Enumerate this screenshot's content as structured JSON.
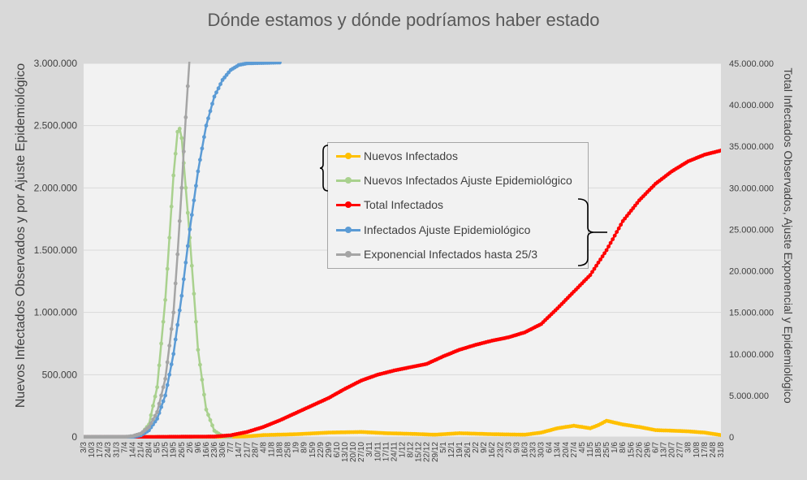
{
  "title": "Dónde estamos y dónde podríamos haber estado",
  "y_left_label": "Nuevos Infectados Observados y por Ajuste Epidemiológico",
  "y_right_label": "Total Infectados Observados, Ajuste Exponencial y Epidemiológico",
  "legend": [
    {
      "label": "Nuevos Infectados",
      "color": "#ffc000"
    },
    {
      "label": "Nuevos Infectados Ajuste Epidemiológico",
      "color": "#a9d18e"
    },
    {
      "label": "Total Infectados",
      "color": "#ff0000"
    },
    {
      "label": "Infectados Ajuste Epidemiológico",
      "color": "#5b9bd5"
    },
    {
      "label": "Exponencial Infectados hasta 25/3",
      "color": "#a5a5a5"
    }
  ],
  "chart_data": {
    "type": "line",
    "title": "Dónde estamos y dónde podríamos haber estado",
    "x_ticks": [
      "3/3",
      "10/3",
      "17/3",
      "24/3",
      "31/3",
      "7/4",
      "14/4",
      "21/4",
      "28/4",
      "5/5",
      "12/5",
      "19/5",
      "26/5",
      "2/6",
      "9/6",
      "16/6",
      "23/6",
      "30/6",
      "7/7",
      "14/7",
      "21/7",
      "28/7",
      "4/8",
      "11/8",
      "18/8",
      "25/8",
      "1/9",
      "8/9",
      "15/9",
      "22/9",
      "29/9",
      "6/10",
      "13/10",
      "20/10",
      "27/10",
      "3/11",
      "10/11",
      "17/11",
      "24/11",
      "1/12",
      "8/12",
      "15/12",
      "22/12",
      "29/12",
      "5/1",
      "12/1",
      "19/1",
      "26/1",
      "2/2",
      "9/2",
      "16/2",
      "23/2",
      "2/3",
      "9/3",
      "16/3",
      "23/3",
      "30/3",
      "6/4",
      "13/4",
      "20/4",
      "27/4",
      "4/5",
      "11/5",
      "18/5",
      "25/5",
      "1/6",
      "8/6",
      "15/6",
      "22/6",
      "29/6",
      "6/7",
      "13/7",
      "20/7",
      "27/7",
      "3/8",
      "10/8",
      "17/8",
      "24/8",
      "31/8"
    ],
    "y_left": {
      "label": "Nuevos Infectados Observados y por Ajuste Epidemiológico",
      "min": 0,
      "max": 3000000,
      "ticks": [
        "0",
        "500.000",
        "1.000.000",
        "1.500.000",
        "2.000.000",
        "2.500.000",
        "3.000.000"
      ]
    },
    "y_right": {
      "label": "Total Infectados Observados, Ajuste Exponencial y Epidemiológico",
      "min": 0,
      "max": 45000000,
      "ticks": [
        "0",
        "5.000.000",
        "10.000.000",
        "15.000.000",
        "20.000.000",
        "25.000.000",
        "30.000.000",
        "35.000.000",
        "40.000.000",
        "45.000.000"
      ]
    },
    "grid": true,
    "series": [
      {
        "name": "Nuevos Infectados",
        "axis": "left",
        "color": "#ffc000",
        "points": [
          [
            0,
            0
          ],
          [
            10,
            0
          ],
          [
            17,
            0
          ],
          [
            20,
            5000
          ],
          [
            22,
            15000
          ],
          [
            26,
            22000
          ],
          [
            30,
            35000
          ],
          [
            34,
            40000
          ],
          [
            37,
            30000
          ],
          [
            40,
            25000
          ],
          [
            43,
            18000
          ],
          [
            46,
            30000
          ],
          [
            50,
            22000
          ],
          [
            54,
            18000
          ],
          [
            56,
            35000
          ],
          [
            58,
            70000
          ],
          [
            60,
            90000
          ],
          [
            62,
            70000
          ],
          [
            63,
            95000
          ],
          [
            64,
            130000
          ],
          [
            66,
            100000
          ],
          [
            68,
            80000
          ],
          [
            70,
            55000
          ],
          [
            72,
            50000
          ],
          [
            74,
            45000
          ],
          [
            76,
            35000
          ],
          [
            78,
            15000
          ]
        ]
      },
      {
        "name": "Nuevos Infectados Ajuste Epidemiológico",
        "axis": "left",
        "color": "#a9d18e",
        "points": [
          [
            0,
            0
          ],
          [
            6,
            0
          ],
          [
            7,
            20000
          ],
          [
            8,
            100000
          ],
          [
            9,
            400000
          ],
          [
            10,
            1100000
          ],
          [
            11,
            2100000
          ],
          [
            11.6,
            2520000
          ],
          [
            12,
            2400000
          ],
          [
            13,
            1600000
          ],
          [
            14,
            700000
          ],
          [
            15,
            220000
          ],
          [
            16,
            50000
          ],
          [
            17,
            5000
          ],
          [
            18,
            0
          ]
        ]
      },
      {
        "name": "Total Infectados",
        "axis": "right",
        "color": "#ff0000",
        "points": [
          [
            0,
            0
          ],
          [
            8,
            0
          ],
          [
            16,
            50000
          ],
          [
            18,
            200000
          ],
          [
            20,
            600000
          ],
          [
            22,
            1200000
          ],
          [
            24,
            2000000
          ],
          [
            26,
            2900000
          ],
          [
            28,
            3800000
          ],
          [
            30,
            4700000
          ],
          [
            32,
            5800000
          ],
          [
            34,
            6800000
          ],
          [
            36,
            7500000
          ],
          [
            38,
            8000000
          ],
          [
            40,
            8400000
          ],
          [
            42,
            8800000
          ],
          [
            44,
            9700000
          ],
          [
            46,
            10500000
          ],
          [
            48,
            11100000
          ],
          [
            50,
            11600000
          ],
          [
            52,
            12000000
          ],
          [
            54,
            12600000
          ],
          [
            56,
            13600000
          ],
          [
            58,
            15500000
          ],
          [
            60,
            17500000
          ],
          [
            62,
            19500000
          ],
          [
            64,
            22500000
          ],
          [
            66,
            26000000
          ],
          [
            68,
            28500000
          ],
          [
            70,
            30500000
          ],
          [
            72,
            32000000
          ],
          [
            74,
            33200000
          ],
          [
            76,
            34000000
          ],
          [
            78,
            34500000
          ]
        ]
      },
      {
        "name": "Infectados Ajuste Epidemiológico",
        "axis": "right",
        "color": "#5b9bd5",
        "points": [
          [
            0,
            0
          ],
          [
            6,
            0
          ],
          [
            7,
            200000
          ],
          [
            8,
            800000
          ],
          [
            9,
            2200000
          ],
          [
            10,
            5000000
          ],
          [
            11,
            10000000
          ],
          [
            12,
            17000000
          ],
          [
            13,
            25000000
          ],
          [
            14,
            32000000
          ],
          [
            15,
            37500000
          ],
          [
            16,
            41000000
          ],
          [
            17,
            43000000
          ],
          [
            18,
            44200000
          ],
          [
            19,
            44800000
          ],
          [
            20,
            45000000
          ],
          [
            24,
            45100000
          ]
        ]
      },
      {
        "name": "Exponencial Infectados hasta 25/3",
        "axis": "right",
        "color": "#a5a5a5",
        "points": [
          [
            0,
            0
          ],
          [
            5,
            0
          ],
          [
            6,
            100000
          ],
          [
            7,
            400000
          ],
          [
            8,
            1200000
          ],
          [
            9,
            3000000
          ],
          [
            10,
            7000000
          ],
          [
            11,
            15000000
          ],
          [
            11.5,
            22000000
          ],
          [
            12,
            30000000
          ],
          [
            12.4,
            37000000
          ],
          [
            12.8,
            43000000
          ],
          [
            13,
            46000000
          ]
        ]
      }
    ]
  }
}
